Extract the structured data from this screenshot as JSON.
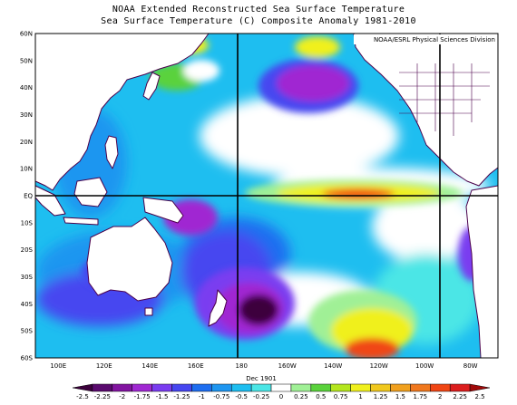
{
  "titles": {
    "line1": "NOAA Extended Reconstructed Sea Surface Temperature",
    "line2": "Sea Surface Temperature (C) Composite Anomaly 1981-2010"
  },
  "credit": "NOAA/ESRL Physical Sciences Division",
  "latitude_labels": [
    "60N",
    "50N",
    "40N",
    "30N",
    "20N",
    "10N",
    "EQ",
    "10S",
    "20S",
    "30S",
    "40S",
    "50S",
    "60S"
  ],
  "longitude_labels": [
    "100E",
    "120E",
    "140E",
    "160E",
    "180",
    "160W",
    "140W",
    "120W",
    "100W",
    "80W"
  ],
  "colorbar": {
    "tick_labels": [
      "-2.5",
      "-2.25",
      "-2",
      "-1.75",
      "-1.5",
      "-1.25",
      "-1",
      "-0.75",
      "-0.5",
      "-0.25",
      "0",
      "0.25",
      "0.5",
      "0.75",
      "1",
      "1.25",
      "1.5",
      "1.75",
      "2",
      "2.25",
      "2.5"
    ],
    "overlay_text": "Dec 1901",
    "colors": [
      "#3c003c",
      "#5a0a6e",
      "#8214a0",
      "#a028d2",
      "#7a3cf0",
      "#4646f0",
      "#1e6ef0",
      "#1e96f0",
      "#1ebef0",
      "#4be6e6",
      "#ffffff",
      "#a0f096",
      "#5ad23c",
      "#b4e61e",
      "#f0f01e",
      "#f0c81e",
      "#f0a01e",
      "#f0781e",
      "#f04614",
      "#dc1e1e",
      "#a00a0a"
    ]
  },
  "map": {
    "lon_range": [
      90,
      292
    ],
    "lat_range": [
      -60,
      60
    ],
    "gridlines": {
      "lat": [
        0
      ],
      "lon": [
        180,
        270
      ]
    },
    "background_color": "#1ebef0",
    "land_outline_color": "#4b004b",
    "anomaly_patches": [
      {
        "lon": 200,
        "lat": 43,
        "anomaly": -0.6,
        "note": "N Pacific"
      },
      {
        "lon": 205,
        "lat": 44,
        "anomaly": -1.0
      },
      {
        "lon": 145,
        "lat": 40,
        "anomaly": 0.6
      },
      {
        "lon": 215,
        "lat": 57,
        "anomaly": 0.8
      },
      {
        "lon": 223,
        "lat": 0,
        "anomaly": 1.0,
        "note": "Equatorial warm tongue"
      },
      {
        "lon": 178,
        "lat": -41,
        "anomaly": -2.25,
        "note": "SW Pacific cold core"
      },
      {
        "lon": 232,
        "lat": -52,
        "anomaly": 2.0,
        "note": "S Pacific warm"
      },
      {
        "lon": 258,
        "lat": -30,
        "anomaly": -0.2
      },
      {
        "lon": 115,
        "lat": -30,
        "anomaly": -0.5
      }
    ]
  }
}
